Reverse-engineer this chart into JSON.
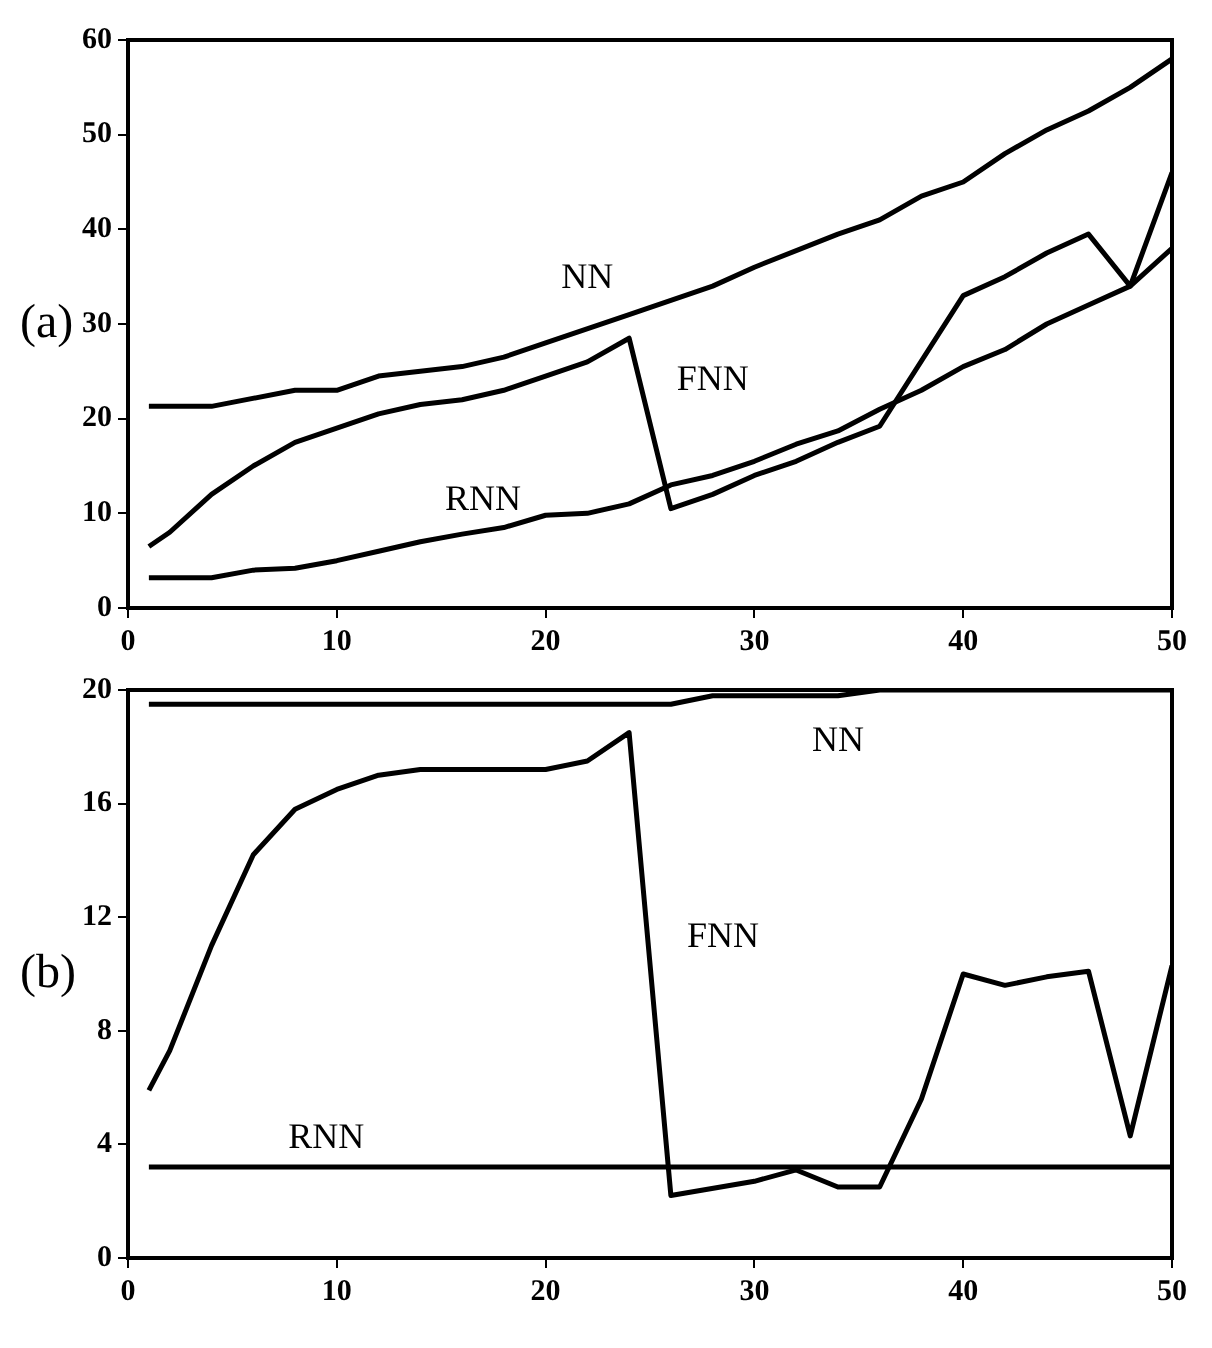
{
  "chart_data": [
    {
      "type": "line",
      "title": "(a)",
      "xlim": [
        0,
        50
      ],
      "xticks": [
        0,
        10,
        20,
        30,
        40,
        50
      ],
      "ylim": [
        0,
        60
      ],
      "yticks": [
        0,
        10,
        20,
        30,
        40,
        50,
        60
      ],
      "series": [
        {
          "name": "NN",
          "color": "#000000",
          "x": [
            1,
            4,
            8,
            10,
            12,
            16,
            18,
            20,
            24,
            28,
            30,
            34,
            36,
            38,
            40,
            42,
            44,
            46,
            48,
            50
          ],
          "values": [
            21.3,
            21.3,
            23,
            23,
            24.5,
            25.5,
            26.5,
            28,
            31,
            34,
            36,
            39.5,
            41,
            43.5,
            45,
            48,
            50.5,
            52.5,
            55,
            58
          ]
        },
        {
          "name": "FNN",
          "color": "#000000",
          "x": [
            1,
            2,
            4,
            6,
            8,
            10,
            12,
            14,
            16,
            18,
            20,
            22,
            24,
            26,
            28,
            30,
            32,
            34,
            36,
            40,
            42,
            44,
            46,
            48,
            50
          ],
          "values": [
            6.5,
            8,
            12,
            15,
            17.5,
            19,
            20.5,
            21.5,
            22,
            23,
            24.5,
            26,
            28.5,
            10.5,
            12,
            14,
            15.5,
            17.5,
            19.2,
            33,
            35,
            37.5,
            39.5,
            34,
            46
          ]
        },
        {
          "name": "RNN",
          "color": "#000000",
          "x": [
            1,
            4,
            6,
            8,
            10,
            12,
            14,
            16,
            18,
            20,
            22,
            24,
            26,
            28,
            30,
            32,
            34,
            36,
            38,
            40,
            42,
            44,
            46,
            48,
            50
          ],
          "values": [
            3.2,
            3.2,
            4,
            4.2,
            5,
            6,
            7,
            7.8,
            8.5,
            9.8,
            10,
            11,
            13,
            14,
            15.5,
            17.3,
            18.7,
            21,
            23,
            25.5,
            27.3,
            30,
            32,
            34,
            38
          ]
        }
      ]
    },
    {
      "type": "line",
      "title": "(b)",
      "xlim": [
        0,
        50
      ],
      "xticks": [
        0,
        10,
        20,
        30,
        40,
        50
      ],
      "ylim": [
        0,
        20
      ],
      "yticks": [
        0,
        4,
        8,
        12,
        16,
        20
      ],
      "series": [
        {
          "name": "NN",
          "color": "#000000",
          "x": [
            1,
            26,
            28,
            34,
            36,
            50
          ],
          "values": [
            19.5,
            19.5,
            19.8,
            19.8,
            20,
            20
          ]
        },
        {
          "name": "FNN",
          "color": "#000000",
          "x": [
            1,
            2,
            4,
            6,
            8,
            10,
            12,
            14,
            20,
            22,
            24,
            26,
            30,
            32,
            34,
            36,
            38,
            40,
            42,
            44,
            46,
            48,
            50
          ],
          "values": [
            5.9,
            7.3,
            11,
            14.2,
            15.8,
            16.5,
            17,
            17.2,
            17.2,
            17.5,
            18.5,
            2.2,
            2.7,
            3.1,
            2.5,
            2.5,
            5.6,
            10,
            9.6,
            9.9,
            10.1,
            4.3,
            10.3
          ]
        },
        {
          "name": "RNN",
          "color": "#000000",
          "x": [
            1,
            50
          ],
          "values": [
            3.2,
            3.2
          ]
        }
      ]
    }
  ]
}
